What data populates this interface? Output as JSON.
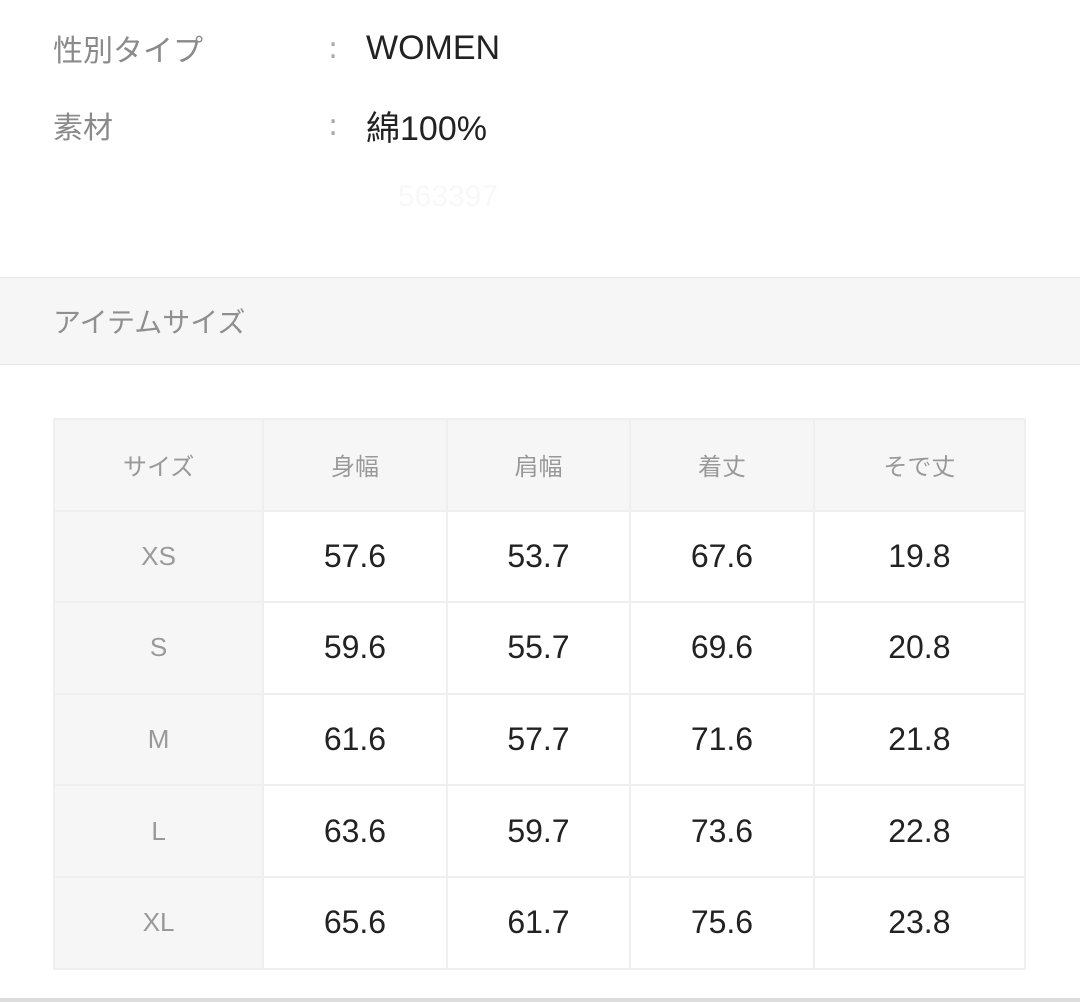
{
  "details": [
    {
      "label": "性別タイプ",
      "value": "WOMEN"
    },
    {
      "label": "素材",
      "value": "綿100%"
    }
  ],
  "faint_value": "563397",
  "colon": ":",
  "section_title": "アイテムサイズ",
  "size_table": {
    "headers": [
      "サイズ",
      "身幅",
      "肩幅",
      "着丈",
      "そで丈"
    ],
    "rows": [
      [
        "XS",
        "57.6",
        "53.7",
        "67.6",
        "19.8"
      ],
      [
        "S",
        "59.6",
        "55.7",
        "69.6",
        "20.8"
      ],
      [
        "M",
        "61.6",
        "57.7",
        "71.6",
        "21.8"
      ],
      [
        "L",
        "63.6",
        "59.7",
        "73.6",
        "22.8"
      ],
      [
        "XL",
        "65.6",
        "61.7",
        "75.6",
        "23.8"
      ]
    ]
  }
}
